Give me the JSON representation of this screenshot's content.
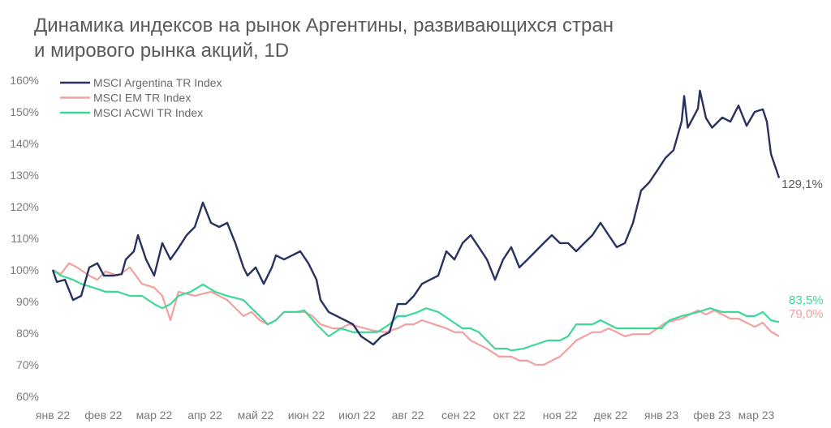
{
  "chart_data": {
    "type": "line",
    "title_line1": "Динамика индексов на рынок Аргентины, развивающихся стран",
    "title_line2": "и мирового рынка акций, 1D",
    "xlabel": "",
    "ylabel": "",
    "x_unit": "months since янв 22",
    "ylim": [
      60,
      160
    ],
    "y_ticks": [
      60,
      70,
      80,
      90,
      100,
      110,
      120,
      130,
      140,
      150,
      160
    ],
    "y_tick_labels": [
      "60%",
      "70%",
      "80%",
      "90%",
      "100%",
      "110%",
      "120%",
      "130%",
      "140%",
      "150%",
      "160%"
    ],
    "x_tick_labels": [
      "янв 22",
      "фев 22",
      "мар 22",
      "апр 22",
      "май 22",
      "июн 22",
      "июл 22",
      "авг 22",
      "сен 22",
      "окт 22",
      "ноя 22",
      "дек 22",
      "янв 23",
      "фев 23",
      "мар 23"
    ],
    "grid": false,
    "legend_position": "top-left",
    "series": [
      {
        "name": "MSCI Argentina TR Index",
        "color": "#27325e",
        "end_label": "129,1%",
        "end_label_color": "#5a5a5a",
        "x": [
          0,
          0.08,
          0.24,
          0.4,
          0.56,
          0.72,
          0.88,
          1.01,
          1.2,
          1.36,
          1.44,
          1.6,
          1.68,
          1.84,
          2.0,
          2.16,
          2.32,
          2.48,
          2.64,
          2.8,
          2.96,
          3.12,
          3.28,
          3.44,
          3.6,
          3.76,
          3.84,
          4.0,
          4.16,
          4.32,
          4.4,
          4.56,
          4.72,
          4.88,
          5.04,
          5.2,
          5.28,
          5.44,
          5.6,
          5.76,
          5.92,
          6.08,
          6.32,
          6.48,
          6.64,
          6.8,
          6.96,
          7.12,
          7.28,
          7.44,
          7.6,
          7.76,
          7.92,
          8.08,
          8.24,
          8.4,
          8.56,
          8.72,
          8.88,
          9.04,
          9.2,
          9.36,
          9.52,
          9.68,
          9.84,
          10.0,
          10.16,
          10.32,
          10.48,
          10.64,
          10.8,
          10.96,
          11.12,
          11.28,
          11.44,
          11.6,
          11.76,
          11.92,
          12.08,
          12.24,
          12.4,
          12.45,
          12.52,
          12.72,
          12.76,
          12.88,
          13.0,
          13.2,
          13.36,
          13.52,
          13.68,
          13.84,
          14.0,
          14.08,
          14.16,
          14.32
        ],
        "y": [
          100,
          96.2,
          96.9,
          90.5,
          91.8,
          100.8,
          102.1,
          98.2,
          98.2,
          98.7,
          103.3,
          105.9,
          111.0,
          103.3,
          98.2,
          108.5,
          103.3,
          107.0,
          111.0,
          113.6,
          121.3,
          114.9,
          113.6,
          114.9,
          108.5,
          100.8,
          98.2,
          100.8,
          95.6,
          100.8,
          104.6,
          103.3,
          104.6,
          105.9,
          102.1,
          96.9,
          90.5,
          86.7,
          85.4,
          84.1,
          82.8,
          79.0,
          76.4,
          79.0,
          80.3,
          89.2,
          89.2,
          91.8,
          95.6,
          96.9,
          98.2,
          105.9,
          103.3,
          108.5,
          111.0,
          107.2,
          103.3,
          96.9,
          103.3,
          107.2,
          100.8,
          103.3,
          105.9,
          108.5,
          111.0,
          108.5,
          108.5,
          105.9,
          108.5,
          111.0,
          114.9,
          111.0,
          107.2,
          108.5,
          114.9,
          125.1,
          127.7,
          131.5,
          135.4,
          137.9,
          147.0,
          155.0,
          145.0,
          151.0,
          156.7,
          148.0,
          145.0,
          148.2,
          146.9,
          152.0,
          145.6,
          150.0,
          150.8,
          146.9,
          136.7,
          129.1
        ]
      },
      {
        "name": "MSCI EM TR Index",
        "color": "#f2a0a0",
        "end_label": "79,0%",
        "end_label_color": "#f2a0a0",
        "x": [
          0,
          0.16,
          0.32,
          0.48,
          0.72,
          0.88,
          1.04,
          1.28,
          1.52,
          1.76,
          2.0,
          2.16,
          2.32,
          2.48,
          2.8,
          3.12,
          3.44,
          3.76,
          3.92,
          4.08,
          4.24,
          4.4,
          4.56,
          4.72,
          4.96,
          5.12,
          5.28,
          5.52,
          5.68,
          5.84,
          6.16,
          6.32,
          6.56,
          6.8,
          6.96,
          7.12,
          7.28,
          7.52,
          7.76,
          7.92,
          8.08,
          8.24,
          8.56,
          8.8,
          9.04,
          9.2,
          9.36,
          9.52,
          9.68,
          9.84,
          10.0,
          10.16,
          10.32,
          10.48,
          10.64,
          10.8,
          10.96,
          11.12,
          11.28,
          11.44,
          11.76,
          12.08,
          12.4,
          12.72,
          12.88,
          13.04,
          13.2,
          13.36,
          13.52,
          13.68,
          13.84,
          14.0,
          14.16,
          14.32
        ],
        "y": [
          100,
          98.7,
          102.1,
          100.8,
          98.2,
          96.9,
          99.5,
          98.2,
          100.8,
          95.6,
          94.4,
          91.8,
          84.1,
          93.1,
          91.8,
          93.1,
          90.5,
          85.4,
          86.7,
          84.1,
          82.8,
          84.1,
          86.7,
          86.7,
          86.7,
          85.4,
          82.8,
          81.5,
          81.5,
          82.8,
          81.5,
          80.8,
          80.3,
          81.5,
          82.8,
          82.8,
          84.1,
          82.8,
          81.5,
          80.3,
          80.3,
          77.7,
          75.1,
          72.6,
          72.6,
          71.3,
          71.3,
          70.0,
          70.0,
          71.3,
          72.6,
          75.1,
          77.7,
          79.0,
          80.3,
          80.3,
          81.5,
          80.3,
          79.0,
          79.7,
          79.7,
          83.3,
          84.6,
          87.2,
          85.9,
          87.2,
          85.9,
          84.6,
          84.6,
          83.3,
          82.0,
          83.3,
          80.5,
          79.0
        ]
      },
      {
        "name": "MSCI ACWI TR Index",
        "color": "#3ed896",
        "end_label": "83,5%",
        "end_label_color": "#3ed896",
        "x": [
          0,
          0.16,
          0.4,
          0.56,
          0.8,
          1.04,
          1.28,
          1.52,
          1.76,
          2.0,
          2.16,
          2.32,
          2.48,
          2.72,
          2.96,
          3.2,
          3.44,
          3.76,
          3.92,
          4.08,
          4.24,
          4.4,
          4.56,
          4.8,
          4.96,
          5.2,
          5.44,
          5.68,
          5.92,
          6.16,
          6.4,
          6.64,
          6.8,
          6.96,
          7.2,
          7.36,
          7.6,
          7.84,
          8.08,
          8.24,
          8.4,
          8.56,
          8.72,
          8.96,
          9.04,
          9.28,
          9.52,
          9.76,
          10.0,
          10.16,
          10.32,
          10.48,
          10.64,
          10.8,
          10.96,
          11.12,
          11.44,
          11.76,
          12.0,
          12.16,
          12.4,
          12.72,
          12.96,
          13.2,
          13.52,
          13.68,
          13.84,
          14.0,
          14.16,
          14.32
        ],
        "y": [
          100,
          98.2,
          96.9,
          95.6,
          94.4,
          93.1,
          93.1,
          91.8,
          91.8,
          89.2,
          87.9,
          89.2,
          91.8,
          93.1,
          95.4,
          93.1,
          91.8,
          90.5,
          87.9,
          85.4,
          82.8,
          84.1,
          86.7,
          86.7,
          87.2,
          82.8,
          79.0,
          81.5,
          80.3,
          80.3,
          80.3,
          82.8,
          85.4,
          85.4,
          86.7,
          87.9,
          86.7,
          84.1,
          81.5,
          81.5,
          80.3,
          77.7,
          75.1,
          75.1,
          74.5,
          75.1,
          76.4,
          77.7,
          77.7,
          79.0,
          82.8,
          82.8,
          82.8,
          84.1,
          82.8,
          81.5,
          81.5,
          81.5,
          81.5,
          84.1,
          85.4,
          86.7,
          87.9,
          86.7,
          86.7,
          85.4,
          85.4,
          86.7,
          84.1,
          83.5
        ]
      }
    ]
  }
}
